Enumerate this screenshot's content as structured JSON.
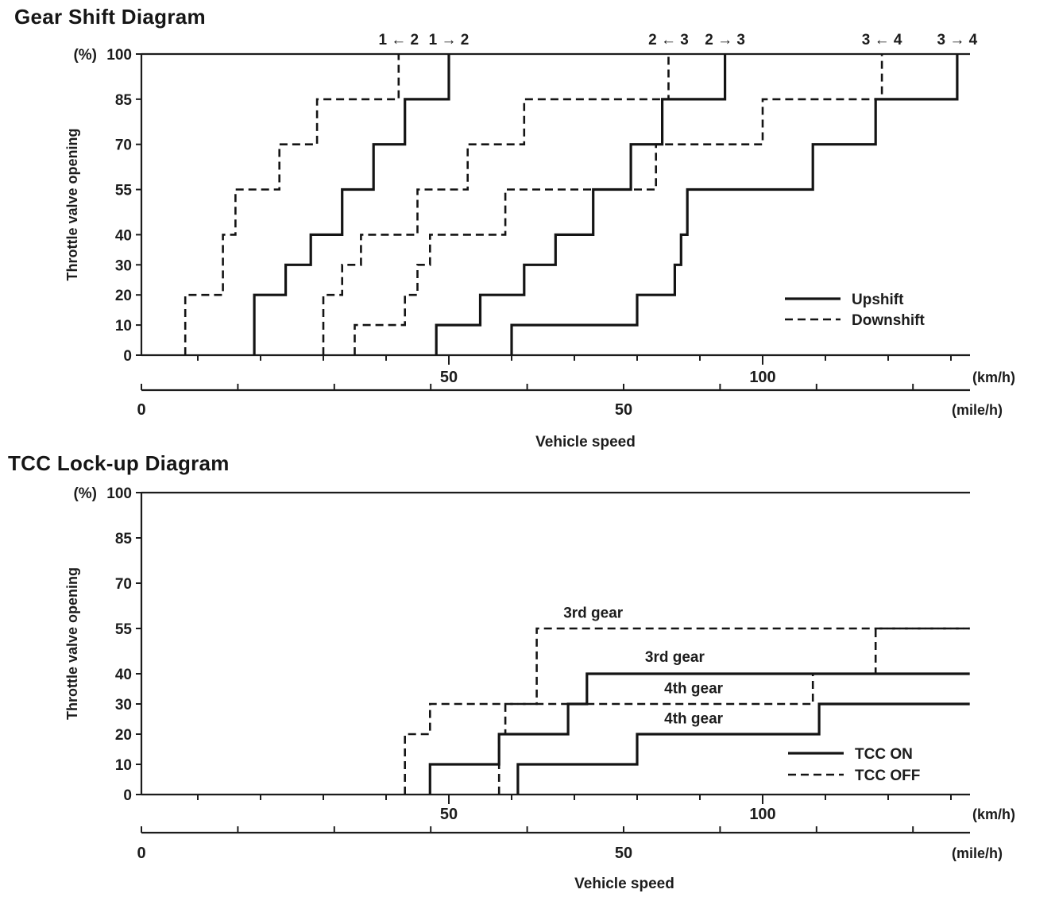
{
  "titles": {
    "gear_shift": "Gear Shift Diagram",
    "tcc": "TCC Lock-up Diagram"
  },
  "ink_color": "#1c1c1c",
  "chart_data": [
    {
      "id": "gear-shift",
      "type": "line",
      "subtype": "step-staircase",
      "title": "Gear Shift Diagram",
      "ylabel": "Throttle valve opening",
      "y_unit": "(%)",
      "xlabel": "Vehicle speed",
      "ylim": [
        0,
        100
      ],
      "y_ticks": [
        100,
        85,
        70,
        55,
        40,
        30,
        20,
        10,
        0
      ],
      "x_axis_kmh": {
        "unit": "(km/h)",
        "labeled_ticks": [
          50,
          100
        ],
        "minor_step": 10,
        "max": 130,
        "range": [
          0,
          133
        ]
      },
      "x_axis_mph": {
        "unit": "(mile/h)",
        "labeled_ticks": [
          0,
          50
        ],
        "minor_step": 10,
        "max": 80,
        "range": [
          0,
          85
        ]
      },
      "grid": false,
      "legend": [
        {
          "label": "Upshift",
          "style": "solid"
        },
        {
          "label": "Downshift",
          "style": "dashed"
        }
      ],
      "top_labels": [
        {
          "text": "1 ← 2",
          "kmh": 42
        },
        {
          "text": "1 → 2",
          "kmh": 50
        },
        {
          "text": "2 ← 3",
          "kmh": 85
        },
        {
          "text": "2 → 3",
          "kmh": 94
        },
        {
          "text": "3 ← 4",
          "kmh": 119
        },
        {
          "text": "3 → 4",
          "kmh": 131
        }
      ],
      "series": [
        {
          "name": "downshift-2-1",
          "label": "1 ← 2",
          "style": "dashed",
          "points_kmh_pct": [
            [
              8,
              0
            ],
            [
              8,
              20
            ],
            [
              14,
              20
            ],
            [
              14,
              40
            ],
            [
              16,
              40
            ],
            [
              16,
              55
            ],
            [
              23,
              55
            ],
            [
              23,
              70
            ],
            [
              29,
              70
            ],
            [
              29,
              85
            ],
            [
              42,
              85
            ],
            [
              42,
              100
            ]
          ]
        },
        {
          "name": "upshift-1-2",
          "label": "1 → 2",
          "style": "solid",
          "points_kmh_pct": [
            [
              19,
              0
            ],
            [
              19,
              20
            ],
            [
              24,
              20
            ],
            [
              24,
              30
            ],
            [
              28,
              30
            ],
            [
              28,
              40
            ],
            [
              33,
              40
            ],
            [
              33,
              55
            ],
            [
              38,
              55
            ],
            [
              38,
              70
            ],
            [
              43,
              70
            ],
            [
              43,
              85
            ],
            [
              50,
              85
            ],
            [
              50,
              100
            ]
          ]
        },
        {
          "name": "downshift-3-2",
          "label": "2 ← 3",
          "style": "dashed",
          "points_kmh_pct": [
            [
              30,
              0
            ],
            [
              30,
              20
            ],
            [
              33,
              20
            ],
            [
              33,
              30
            ],
            [
              36,
              30
            ],
            [
              36,
              40
            ],
            [
              45,
              40
            ],
            [
              45,
              55
            ],
            [
              53,
              55
            ],
            [
              53,
              70
            ],
            [
              62,
              70
            ],
            [
              62,
              85
            ],
            [
              85,
              85
            ],
            [
              85,
              100
            ]
          ]
        },
        {
          "name": "upshift-2-3",
          "label": "2 → 3",
          "style": "solid",
          "points_kmh_pct": [
            [
              48,
              0
            ],
            [
              48,
              10
            ],
            [
              55,
              10
            ],
            [
              55,
              20
            ],
            [
              62,
              20
            ],
            [
              62,
              30
            ],
            [
              67,
              30
            ],
            [
              67,
              40
            ],
            [
              73,
              40
            ],
            [
              73,
              55
            ],
            [
              79,
              55
            ],
            [
              79,
              70
            ],
            [
              84,
              70
            ],
            [
              84,
              85
            ],
            [
              94,
              85
            ],
            [
              94,
              100
            ]
          ]
        },
        {
          "name": "downshift-4-3",
          "label": "3 ← 4",
          "style": "dashed",
          "points_kmh_pct": [
            [
              35,
              0
            ],
            [
              35,
              10
            ],
            [
              43,
              10
            ],
            [
              43,
              20
            ],
            [
              45,
              20
            ],
            [
              45,
              30
            ],
            [
              47,
              30
            ],
            [
              47,
              40
            ],
            [
              59,
              40
            ],
            [
              59,
              55
            ],
            [
              83,
              55
            ],
            [
              83,
              70
            ],
            [
              100,
              70
            ],
            [
              100,
              85
            ],
            [
              119,
              85
            ],
            [
              119,
              100
            ]
          ]
        },
        {
          "name": "upshift-3-4",
          "label": "3 → 4",
          "style": "solid",
          "points_kmh_pct": [
            [
              60,
              0
            ],
            [
              60,
              10
            ],
            [
              80,
              10
            ],
            [
              80,
              20
            ],
            [
              86,
              20
            ],
            [
              86,
              30
            ],
            [
              87,
              30
            ],
            [
              87,
              40
            ],
            [
              88,
              40
            ],
            [
              88,
              55
            ],
            [
              108,
              55
            ],
            [
              108,
              70
            ],
            [
              118,
              70
            ],
            [
              118,
              85
            ],
            [
              131,
              85
            ],
            [
              131,
              100
            ]
          ]
        }
      ]
    },
    {
      "id": "tcc-lockup",
      "type": "line",
      "subtype": "step-staircase",
      "title": "TCC Lock-up Diagram",
      "ylabel": "Throttle valve opening",
      "y_unit": "(%)",
      "xlabel": "Vehicle speed",
      "ylim": [
        0,
        100
      ],
      "y_ticks": [
        100,
        85,
        70,
        55,
        40,
        30,
        20,
        10,
        0
      ],
      "x_axis_kmh": {
        "unit": "(km/h)",
        "labeled_ticks": [
          50,
          100
        ],
        "minor_step": 10,
        "max": 130,
        "range": [
          0,
          133
        ]
      },
      "x_axis_mph": {
        "unit": "(mile/h)",
        "labeled_ticks": [
          0,
          50
        ],
        "minor_step": 10,
        "max": 80,
        "range": [
          0,
          85
        ]
      },
      "grid": false,
      "legend": [
        {
          "label": "TCC ON",
          "style": "solid"
        },
        {
          "label": "TCC OFF",
          "style": "dashed"
        }
      ],
      "annotations": [
        {
          "text": "3rd gear",
          "kmh": 73,
          "pct": 58.5
        },
        {
          "text": "3rd gear",
          "kmh": 86,
          "pct": 44
        },
        {
          "text": "4th gear",
          "kmh": 89,
          "pct": 33.5
        },
        {
          "text": "4th gear",
          "kmh": 89,
          "pct": 23.5
        }
      ],
      "series": [
        {
          "name": "tcc-off-3rd-gear",
          "label": "3rd gear",
          "style": "dashed",
          "points_kmh_pct": [
            [
              43,
              0
            ],
            [
              43,
              20
            ],
            [
              47,
              20
            ],
            [
              47,
              30
            ],
            [
              64,
              30
            ],
            [
              64,
              55
            ],
            [
              133,
              55
            ]
          ]
        },
        {
          "name": "tcc-off-4th-gear",
          "label": "4th gear",
          "style": "dashed",
          "points_kmh_pct": [
            [
              58,
              0
            ],
            [
              58,
              20
            ],
            [
              59,
              20
            ],
            [
              59,
              30
            ],
            [
              108,
              30
            ],
            [
              108,
              40
            ],
            [
              118,
              40
            ],
            [
              118,
              55
            ],
            [
              133,
              55
            ]
          ]
        },
        {
          "name": "tcc-on-3rd-gear",
          "label": "3rd gear",
          "style": "solid",
          "points_kmh_pct": [
            [
              47,
              0
            ],
            [
              47,
              10
            ],
            [
              58,
              10
            ],
            [
              58,
              20
            ],
            [
              69,
              20
            ],
            [
              69,
              30
            ],
            [
              72,
              30
            ],
            [
              72,
              40
            ],
            [
              133,
              40
            ]
          ]
        },
        {
          "name": "tcc-on-4th-gear",
          "label": "4th gear",
          "style": "solid",
          "points_kmh_pct": [
            [
              61,
              0
            ],
            [
              61,
              10
            ],
            [
              80,
              10
            ],
            [
              80,
              20
            ],
            [
              109,
              20
            ],
            [
              109,
              30
            ],
            [
              133,
              30
            ]
          ]
        }
      ]
    }
  ]
}
